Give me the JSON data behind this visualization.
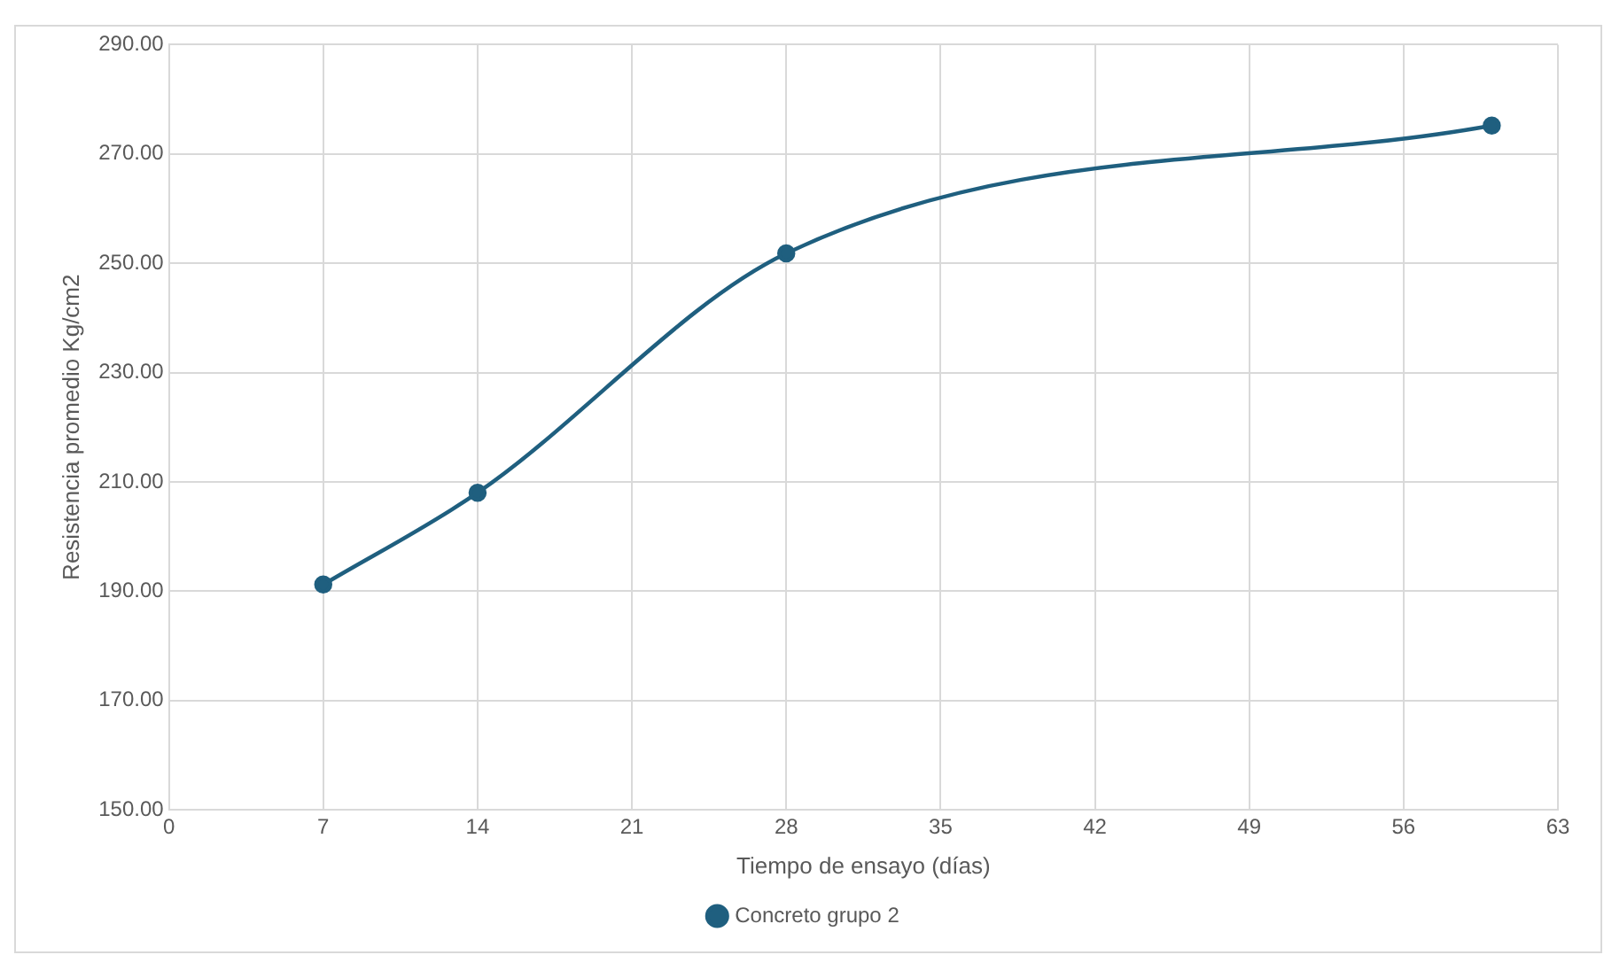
{
  "chart_data": {
    "type": "line",
    "xlabel": "Tiempo de ensayo (días)",
    "ylabel": "Resistencia promedio Kg/cm2",
    "x": [
      7,
      14,
      28,
      60
    ],
    "series": [
      {
        "name": "Concreto grupo 2",
        "color": "#1f5f7f",
        "values": [
          191.2,
          208.0,
          251.8,
          275.2
        ]
      }
    ],
    "xlim": [
      0,
      63
    ],
    "xticks": [
      0,
      7,
      14,
      21,
      28,
      35,
      42,
      49,
      56,
      63
    ],
    "ylim": [
      150,
      290
    ],
    "yticks": [
      {
        "value": 150,
        "label": "150.00"
      },
      {
        "value": 170,
        "label": "170.00"
      },
      {
        "value": 190,
        "label": "190.00"
      },
      {
        "value": 210,
        "label": "210.00"
      },
      {
        "value": 230,
        "label": "230.00"
      },
      {
        "value": 250,
        "label": "250.00"
      },
      {
        "value": 270,
        "label": "270.00"
      },
      {
        "value": 290,
        "label": "290.00"
      }
    ],
    "grid": true,
    "legend": "bottom",
    "marker": "circle",
    "line_style": "solid"
  }
}
